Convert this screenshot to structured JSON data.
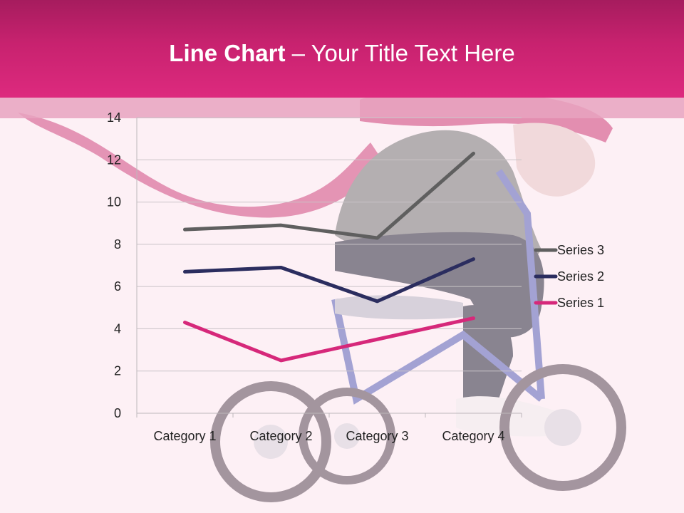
{
  "slide": {
    "title_bold": "Line Chart",
    "title_rest": " – Your Title Text Here",
    "accent_color": "#d6287a",
    "header_color": "#b21f65"
  },
  "chart_data": {
    "type": "line",
    "categories": [
      "Category 1",
      "Category 2",
      "Category 3",
      "Category 4"
    ],
    "series": [
      {
        "name": "Series 1",
        "values": [
          4.3,
          2.5,
          3.5,
          4.5
        ],
        "color": "#d6287a"
      },
      {
        "name": "Series 2",
        "values": [
          6.7,
          6.9,
          5.3,
          7.3
        ],
        "color": "#2b2d5f"
      },
      {
        "name": "Series 3",
        "values": [
          8.7,
          8.9,
          8.3,
          12.3
        ],
        "color": "#5f5f5f"
      }
    ],
    "ylim": [
      0,
      14
    ],
    "yticks": [
      0,
      2,
      4,
      6,
      8,
      10,
      12,
      14
    ],
    "grid": true,
    "legend": "right",
    "title": "",
    "xlabel": "",
    "ylabel": ""
  }
}
